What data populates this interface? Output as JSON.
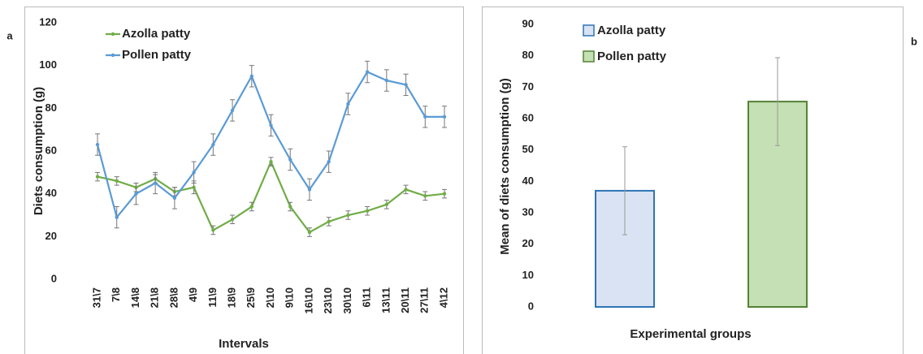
{
  "chart_data": [
    {
      "type": "line",
      "panel_label": "a",
      "x_label": "Intervals",
      "y_label": "Diets consumption (g)",
      "categories": [
        "31\\7",
        "7\\8",
        "14\\8",
        "21\\8",
        "28\\8",
        "4\\9",
        "11\\9",
        "18\\9",
        "25\\9",
        "2\\10",
        "9\\10",
        "16\\10",
        "23\\10",
        "30\\10",
        "6\\11",
        "13\\11",
        "20\\11",
        "27\\11",
        "4\\12"
      ],
      "series": [
        {
          "name": "Azolla patty",
          "color": "#70ad47",
          "values": [
            48,
            46,
            43,
            47,
            41,
            43,
            23,
            28,
            34,
            55,
            34,
            22,
            27,
            30,
            32,
            35,
            42,
            39,
            40
          ],
          "errors": [
            2,
            2,
            2,
            2,
            2,
            3,
            2,
            2,
            2,
            2,
            2,
            2,
            2,
            2,
            2,
            2,
            2,
            2,
            2
          ]
        },
        {
          "name": "Pollen patty",
          "color": "#5b9bd5",
          "values": [
            63,
            29,
            40,
            45,
            38,
            50,
            63,
            79,
            95,
            72,
            56,
            42,
            55,
            82,
            97,
            93,
            91,
            76,
            76
          ],
          "errors": [
            5,
            5,
            5,
            5,
            5,
            5,
            5,
            5,
            5,
            5,
            5,
            5,
            5,
            5,
            5,
            5,
            5,
            5,
            5
          ]
        }
      ],
      "ylim": [
        0,
        120
      ],
      "yticks": [
        0,
        20,
        40,
        60,
        80,
        100,
        120
      ],
      "legend_position": "upper left"
    },
    {
      "type": "bar",
      "panel_label": "b",
      "x_label": "Experimental groups",
      "y_label": "Mean of diets consumption (g)",
      "categories": [
        "Azolla patty",
        "Pollen patty"
      ],
      "values": [
        37,
        65.4
      ],
      "errors": [
        14,
        14
      ],
      "colors": [
        "#dae3f3",
        "#c5e0b4"
      ],
      "edge_colors": [
        "#2e75b6",
        "#548235"
      ],
      "ylim": [
        0,
        90
      ],
      "yticks": [
        0,
        10,
        20,
        30,
        40,
        50,
        60,
        70,
        80,
        90
      ],
      "legend_position": "upper left"
    }
  ]
}
